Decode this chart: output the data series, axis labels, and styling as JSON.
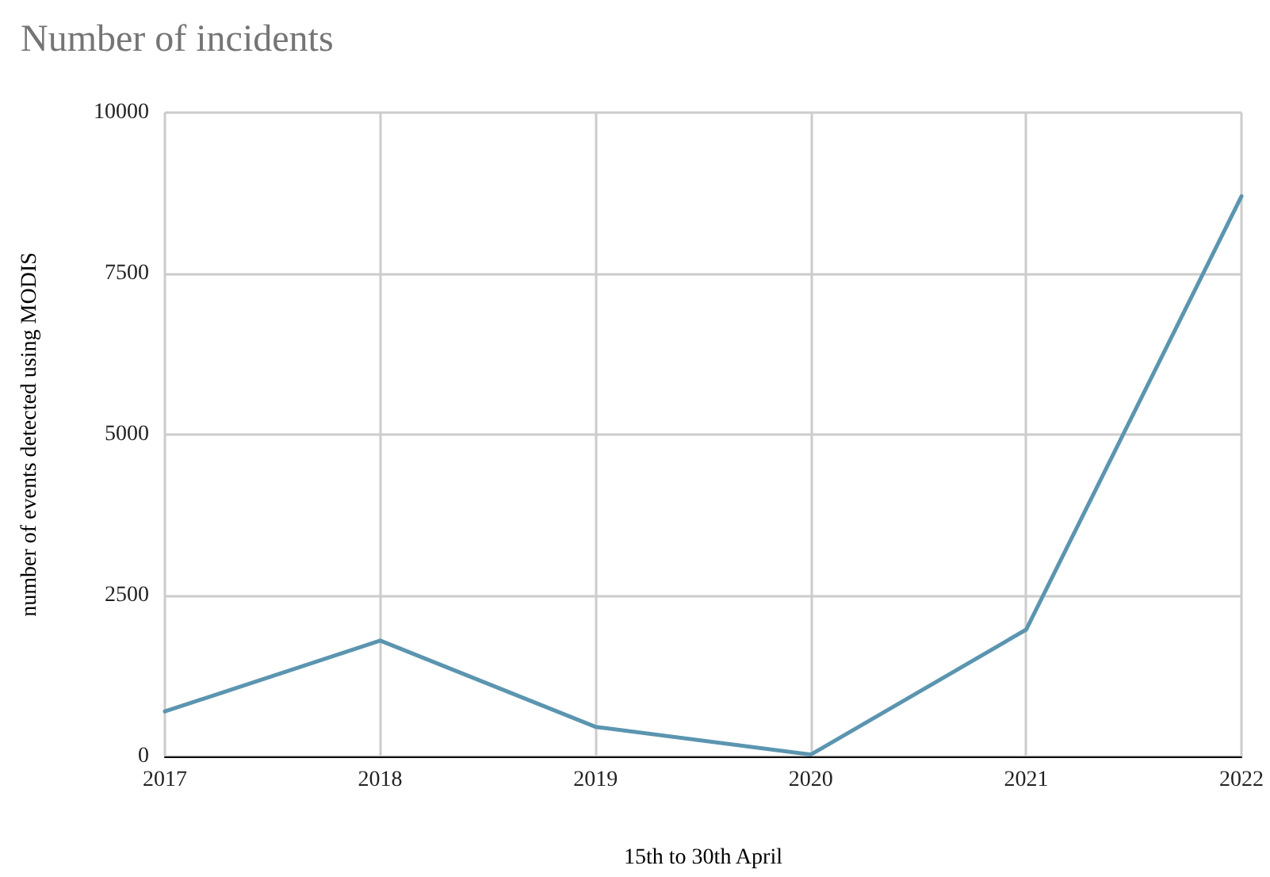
{
  "chart_data": {
    "type": "line",
    "title": "Number of incidents",
    "xlabel": "15th to 30th April",
    "ylabel": "number of events detected using MODIS",
    "categories": [
      "2017",
      "2018",
      "2019",
      "2020",
      "2021",
      "2022"
    ],
    "series": [
      {
        "color": "#5b95b0",
        "values": [
          700,
          1800,
          460,
          30,
          1970,
          8700
        ]
      }
    ],
    "ylim": [
      0,
      10000
    ],
    "yticks": [
      0,
      2500,
      5000,
      7500,
      10000
    ],
    "grid": true,
    "marker": "none",
    "line_style": "solid"
  }
}
